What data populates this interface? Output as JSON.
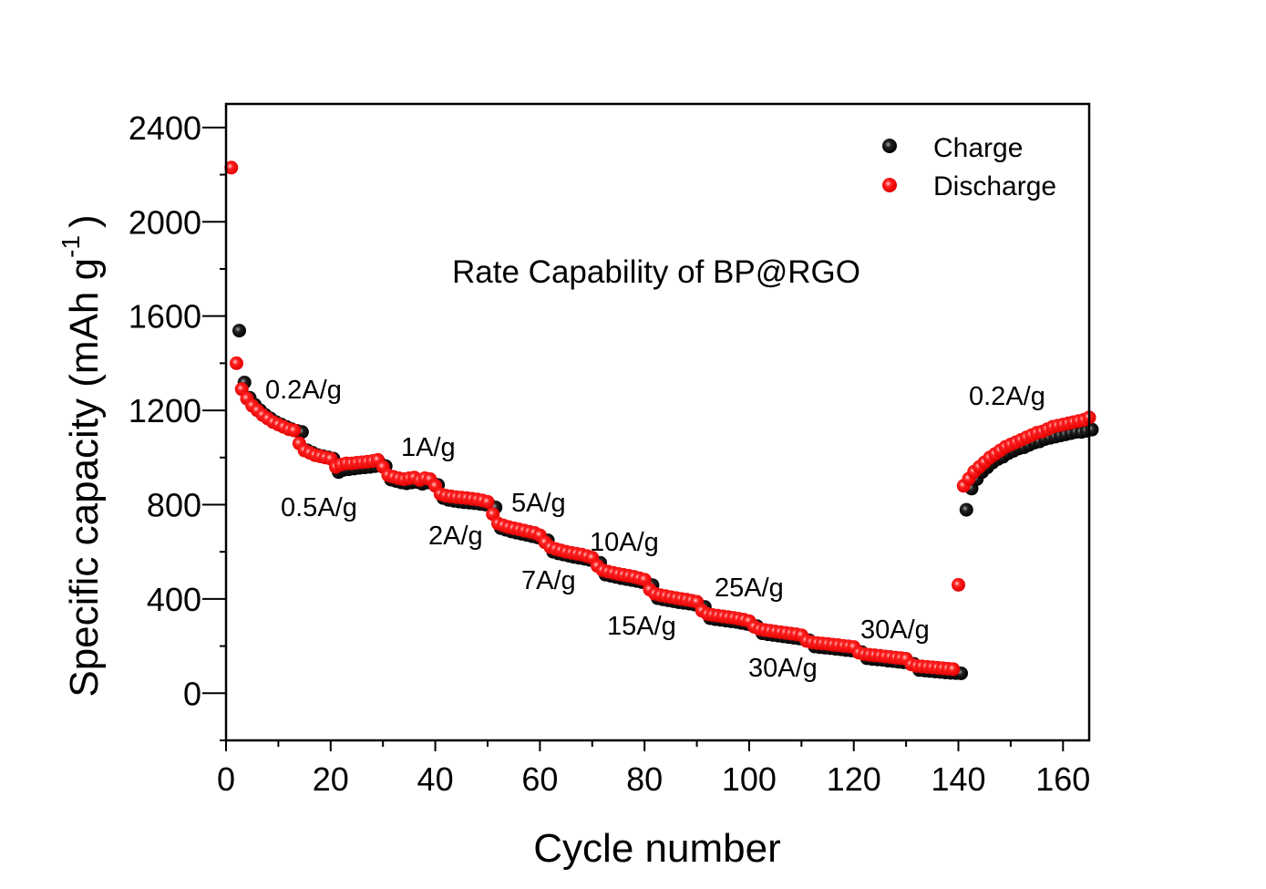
{
  "chart_data": {
    "type": "scatter",
    "title": "Rate Capability of BP@RGO",
    "xlabel": "Cycle number",
    "ylabel": "Specific capacity (mAh g",
    "ylabel_sup": "-1",
    "ylabel_end": ")",
    "xlim": [
      0,
      165
    ],
    "ylim": [
      -200,
      2500
    ],
    "xticks": [
      0,
      20,
      40,
      60,
      80,
      100,
      120,
      140,
      160
    ],
    "yticks": [
      0,
      400,
      800,
      1200,
      1600,
      2000,
      2400
    ],
    "grid": false,
    "legend_position": "top-right",
    "colors": {
      "charge": "#000000",
      "discharge": "#ff0000"
    },
    "annotations": [
      "0.2A/g",
      "0.5A/g",
      "1A/g",
      "2A/g",
      "5A/g",
      "7A/g",
      "10A/g",
      "15A/g",
      "25A/g",
      "30A/g",
      "30A/g",
      "0.2A/g"
    ],
    "series": [
      {
        "name": "Charge",
        "values": [
          null,
          1550,
          1330,
          1265,
          1235,
          1212,
          1192,
          1177,
          1162,
          1152,
          1142,
          1132,
          1125,
          1120,
          1042,
          1032,
          1022,
          1017,
          1012,
          1007,
          950,
          960,
          962,
          965,
          968,
          970,
          972,
          975,
          985,
          975,
          918,
          912,
          906,
          902,
          906,
          908,
          900,
          906,
          902,
          895,
          840,
          832,
          828,
          825,
          822,
          820,
          818,
          815,
          812,
          808,
          800,
          712,
          705,
          698,
          693,
          688,
          683,
          678,
          673,
          665,
          660,
          612,
          605,
          600,
          595,
          590,
          586,
          582,
          577,
          570,
          565,
          515,
          510,
          505,
          500,
          496,
          492,
          488,
          483,
          478,
          470,
          415,
          410,
          406,
          402,
          398,
          395,
          392,
          388,
          383,
          378,
          330,
          326,
          323,
          320,
          317,
          314,
          310,
          306,
          300,
          296,
          266,
          262,
          259,
          256,
          253,
          250,
          247,
          244,
          240,
          236,
          210,
          207,
          205,
          203,
          200,
          198,
          195,
          193,
          190,
          186,
          160,
          157,
          155,
          153,
          150,
          148,
          145,
          143,
          140,
          136,
          110,
          108,
          106,
          104,
          102,
          100,
          98,
          97,
          96,
          790,
          880,
          920,
          950,
          970,
          990,
          1005,
          1015,
          1030,
          1040,
          1050,
          1055,
          1065,
          1075,
          1080,
          1090,
          1095,
          1100,
          1105,
          1110,
          1115,
          1120,
          1120,
          1125,
          1130
        ]
      },
      {
        "name": "Discharge",
        "values": [
          2230,
          1400,
          1290,
          1250,
          1220,
          1200,
          1180,
          1165,
          1150,
          1140,
          1130,
          1120,
          1115,
          1060,
          1030,
          1020,
          1010,
          1005,
          1000,
          995,
          960,
          970,
          975,
          975,
          978,
          980,
          982,
          985,
          990,
          960,
          925,
          918,
          912,
          908,
          912,
          915,
          905,
          912,
          908,
          880,
          845,
          838,
          835,
          832,
          830,
          828,
          825,
          822,
          818,
          812,
          760,
          720,
          712,
          705,
          700,
          695,
          690,
          685,
          680,
          670,
          640,
          620,
          612,
          606,
          600,
          596,
          592,
          588,
          582,
          575,
          540,
          522,
          516,
          511,
          506,
          502,
          498,
          494,
          488,
          482,
          440,
          422,
          416,
          412,
          408,
          404,
          400,
          397,
          393,
          388,
          350,
          336,
          332,
          329,
          326,
          323,
          320,
          316,
          312,
          306,
          282,
          272,
          268,
          265,
          262,
          259,
          256,
          253,
          250,
          246,
          222,
          216,
          213,
          211,
          209,
          206,
          204,
          201,
          199,
          196,
          172,
          166,
          163,
          161,
          159,
          156,
          154,
          151,
          149,
          146,
          122,
          116,
          114,
          112,
          110,
          108,
          106,
          104,
          102,
          460,
          880,
          910,
          940,
          960,
          980,
          1000,
          1015,
          1030,
          1045,
          1055,
          1065,
          1075,
          1085,
          1095,
          1105,
          1110,
          1120,
          1130,
          1135,
          1140,
          1145,
          1150,
          1155,
          1160,
          1170
        ]
      }
    ]
  }
}
